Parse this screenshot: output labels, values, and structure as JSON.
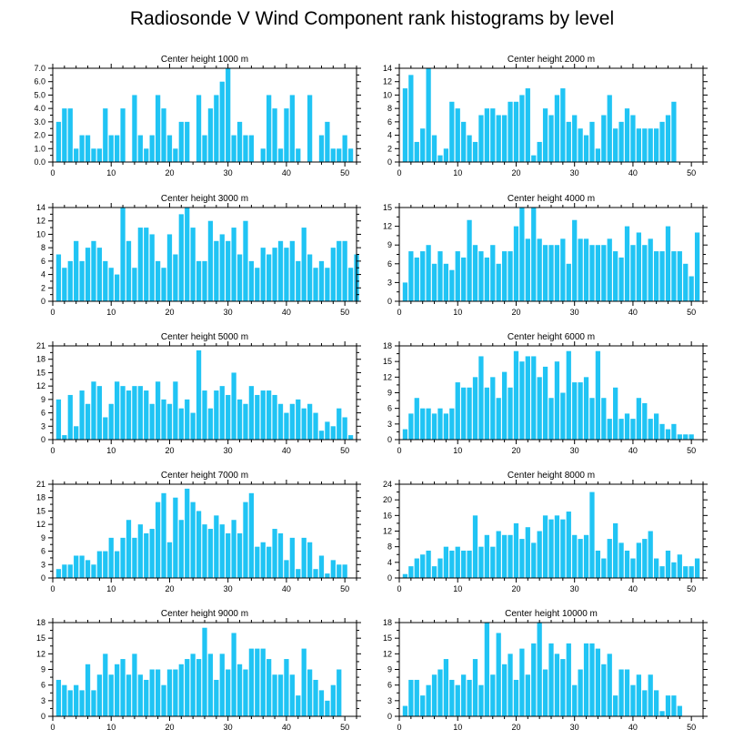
{
  "title": "Radiosonde V Wind Component rank histograms by level",
  "colors": {
    "bar": "#20c4f4",
    "axis": "#000000",
    "background": "#ffffff"
  },
  "chart_data": [
    {
      "type": "bar",
      "title": "Center height 1000 m",
      "xlim": [
        0,
        52
      ],
      "ylim": [
        0,
        7
      ],
      "yticks": [
        0,
        1,
        2,
        3,
        4,
        5,
        6,
        7
      ],
      "ytick_labels": [
        "0.0",
        "1.0",
        "2.0",
        "3.0",
        "4.0",
        "5.0",
        "6.0",
        "7.0"
      ],
      "xticks": [
        0,
        10,
        20,
        30,
        40,
        50
      ],
      "xtick_labels": [
        "0",
        "10",
        "20",
        "30",
        "40",
        "50"
      ],
      "values": [
        3,
        4,
        4,
        1,
        2,
        2,
        1,
        1,
        4,
        2,
        2,
        4,
        0,
        5,
        2,
        1,
        2,
        5,
        4,
        2,
        1,
        3,
        3,
        0,
        5,
        2,
        4,
        5,
        6,
        7,
        2,
        3,
        2,
        2,
        0,
        1,
        5,
        4,
        1,
        4,
        5,
        1,
        0,
        5,
        0,
        2,
        3,
        1,
        1,
        2,
        1
      ]
    },
    {
      "type": "bar",
      "title": "Center height 2000 m",
      "xlim": [
        0,
        52
      ],
      "ylim": [
        0,
        14
      ],
      "yticks": [
        0,
        2,
        4,
        6,
        8,
        10,
        12,
        14
      ],
      "ytick_labels": [
        "0",
        "2",
        "4",
        "6",
        "8",
        "10",
        "12",
        "14"
      ],
      "xticks": [
        0,
        10,
        20,
        30,
        40,
        50
      ],
      "xtick_labels": [
        "0",
        "10",
        "20",
        "30",
        "40",
        "50"
      ],
      "values": [
        11,
        13,
        3,
        5,
        14,
        4,
        1,
        2,
        9,
        8,
        6,
        4,
        3,
        7,
        8,
        8,
        7,
        7,
        9,
        9,
        10,
        11,
        1,
        3,
        8,
        7,
        10,
        11,
        6,
        7,
        5,
        4,
        6,
        2,
        7,
        10,
        5,
        6,
        8,
        7,
        5,
        5,
        5,
        5,
        6,
        7,
        9
      ]
    },
    {
      "type": "bar",
      "title": "Center height 3000 m",
      "xlim": [
        0,
        52
      ],
      "ylim": [
        0,
        14
      ],
      "yticks": [
        0,
        2,
        4,
        6,
        8,
        10,
        12,
        14
      ],
      "ytick_labels": [
        "0",
        "2",
        "4",
        "6",
        "8",
        "10",
        "12",
        "14"
      ],
      "xticks": [
        0,
        10,
        20,
        30,
        40,
        50
      ],
      "xtick_labels": [
        "0",
        "10",
        "20",
        "30",
        "40",
        "50"
      ],
      "values": [
        7,
        5,
        6,
        9,
        6,
        8,
        9,
        8,
        6,
        5,
        4,
        14,
        9,
        5,
        11,
        11,
        10,
        6,
        5,
        10,
        7,
        13,
        14,
        11,
        6,
        6,
        12,
        9,
        10,
        9,
        11,
        7,
        12,
        6,
        5,
        8,
        7,
        8,
        9,
        8,
        9,
        6,
        11,
        7,
        5,
        6,
        5,
        8,
        9,
        9,
        5,
        7
      ]
    },
    {
      "type": "bar",
      "title": "Center height 4000 m",
      "xlim": [
        0,
        52
      ],
      "ylim": [
        0,
        15
      ],
      "yticks": [
        0,
        3,
        6,
        9,
        12,
        15
      ],
      "ytick_labels": [
        "0",
        "3",
        "6",
        "9",
        "12",
        "15"
      ],
      "xticks": [
        0,
        10,
        20,
        30,
        40,
        50
      ],
      "xtick_labels": [
        "0",
        "10",
        "20",
        "30",
        "40",
        "50"
      ],
      "values": [
        3,
        8,
        7,
        8,
        9,
        6,
        8,
        6,
        5,
        8,
        7,
        13,
        9,
        8,
        7,
        9,
        6,
        8,
        8,
        12,
        15,
        10,
        15,
        10,
        9,
        9,
        9,
        10,
        6,
        13,
        10,
        10,
        9,
        9,
        9,
        10,
        8,
        7,
        12,
        9,
        11,
        9,
        10,
        8,
        8,
        12,
        8,
        8,
        6,
        4,
        11
      ]
    },
    {
      "type": "bar",
      "title": "Center height 5000 m",
      "xlim": [
        0,
        52
      ],
      "ylim": [
        0,
        21
      ],
      "yticks": [
        0,
        3,
        6,
        9,
        12,
        15,
        18,
        21
      ],
      "ytick_labels": [
        "0",
        "3",
        "6",
        "9",
        "12",
        "15",
        "18",
        "21"
      ],
      "xticks": [
        0,
        10,
        20,
        30,
        40,
        50
      ],
      "xtick_labels": [
        "0",
        "10",
        "20",
        "30",
        "40",
        "50"
      ],
      "values": [
        9,
        1,
        10,
        3,
        11,
        8,
        13,
        12,
        5,
        8,
        13,
        12,
        11,
        12,
        12,
        11,
        8,
        13,
        9,
        8,
        13,
        7,
        9,
        6,
        20,
        11,
        7,
        11,
        12,
        10,
        15,
        9,
        8,
        12,
        10,
        11,
        11,
        10,
        8,
        6,
        8,
        9,
        7,
        8,
        6,
        2,
        4,
        3,
        7,
        5,
        1
      ]
    },
    {
      "type": "bar",
      "title": "Center height 6000 m",
      "xlim": [
        0,
        52
      ],
      "ylim": [
        0,
        18
      ],
      "yticks": [
        0,
        3,
        6,
        9,
        12,
        15,
        18
      ],
      "ytick_labels": [
        "0",
        "3",
        "6",
        "9",
        "12",
        "15",
        "18"
      ],
      "xticks": [
        0,
        10,
        20,
        30,
        40,
        50
      ],
      "xtick_labels": [
        "0",
        "10",
        "20",
        "30",
        "40",
        "50"
      ],
      "values": [
        2,
        5,
        8,
        6,
        6,
        5,
        6,
        5,
        6,
        11,
        10,
        10,
        12,
        16,
        10,
        12,
        8,
        13,
        10,
        17,
        15,
        16,
        16,
        12,
        14,
        8,
        15,
        9,
        17,
        11,
        11,
        12,
        8,
        17,
        8,
        4,
        10,
        4,
        5,
        4,
        8,
        7,
        4,
        5,
        3,
        2,
        3,
        1,
        1,
        1
      ]
    },
    {
      "type": "bar",
      "title": "Center height 7000 m",
      "xlim": [
        0,
        52
      ],
      "ylim": [
        0,
        21
      ],
      "yticks": [
        0,
        3,
        6,
        9,
        12,
        15,
        18,
        21
      ],
      "ytick_labels": [
        "0",
        "3",
        "6",
        "9",
        "12",
        "15",
        "18",
        "21"
      ],
      "xticks": [
        0,
        10,
        20,
        30,
        40,
        50
      ],
      "xtick_labels": [
        "0",
        "10",
        "20",
        "30",
        "40",
        "50"
      ],
      "values": [
        2,
        3,
        3,
        5,
        5,
        4,
        3,
        6,
        6,
        9,
        6,
        9,
        13,
        9,
        12,
        10,
        11,
        17,
        19,
        8,
        18,
        13,
        20,
        17,
        15,
        12,
        11,
        14,
        12,
        10,
        13,
        10,
        17,
        19,
        7,
        8,
        7,
        11,
        10,
        4,
        9,
        2,
        9,
        8,
        2,
        5,
        1,
        4,
        3,
        3
      ]
    },
    {
      "type": "bar",
      "title": "Center height 8000 m",
      "xlim": [
        0,
        52
      ],
      "ylim": [
        0,
        24
      ],
      "yticks": [
        0,
        4,
        8,
        12,
        16,
        20,
        24
      ],
      "ytick_labels": [
        "0",
        "4",
        "8",
        "12",
        "16",
        "20",
        "24"
      ],
      "xticks": [
        0,
        10,
        20,
        30,
        40,
        50
      ],
      "xtick_labels": [
        "0",
        "10",
        "20",
        "30",
        "40",
        "50"
      ],
      "values": [
        1,
        3,
        5,
        6,
        7,
        3,
        5,
        8,
        7,
        8,
        7,
        7,
        16,
        8,
        11,
        8,
        12,
        11,
        11,
        14,
        10,
        13,
        9,
        12,
        16,
        15,
        16,
        15,
        17,
        11,
        10,
        11,
        22,
        7,
        5,
        10,
        14,
        9,
        7,
        5,
        9,
        10,
        12,
        5,
        3,
        7,
        4,
        6,
        3,
        3,
        5
      ]
    },
    {
      "type": "bar",
      "title": "Center height 9000 m",
      "xlim": [
        0,
        52
      ],
      "ylim": [
        0,
        18
      ],
      "yticks": [
        0,
        3,
        6,
        9,
        12,
        15,
        18
      ],
      "ytick_labels": [
        "0",
        "3",
        "6",
        "9",
        "12",
        "15",
        "18"
      ],
      "xticks": [
        0,
        10,
        20,
        30,
        40,
        50
      ],
      "xtick_labels": [
        "0",
        "10",
        "20",
        "30",
        "40",
        "50"
      ],
      "values": [
        7,
        6,
        5,
        6,
        5,
        10,
        5,
        8,
        12,
        8,
        10,
        11,
        8,
        12,
        8,
        7,
        9,
        9,
        6,
        9,
        9,
        10,
        11,
        12,
        11,
        17,
        12,
        7,
        12,
        9,
        16,
        10,
        9,
        13,
        13,
        13,
        11,
        8,
        8,
        11,
        8,
        4,
        13,
        9,
        7,
        5,
        3,
        6,
        9
      ]
    },
    {
      "type": "bar",
      "title": "Center height 10000 m",
      "xlim": [
        0,
        52
      ],
      "ylim": [
        0,
        18
      ],
      "yticks": [
        0,
        3,
        6,
        9,
        12,
        15,
        18
      ],
      "ytick_labels": [
        "0",
        "3",
        "6",
        "9",
        "12",
        "15",
        "18"
      ],
      "xticks": [
        0,
        10,
        20,
        30,
        40,
        50
      ],
      "xtick_labels": [
        "0",
        "10",
        "20",
        "30",
        "40",
        "50"
      ],
      "values": [
        2,
        7,
        7,
        4,
        6,
        8,
        9,
        11,
        7,
        6,
        8,
        7,
        11,
        6,
        18,
        8,
        16,
        10,
        12,
        7,
        13,
        8,
        14,
        18,
        9,
        14,
        12,
        11,
        14,
        6,
        9,
        14,
        14,
        13,
        10,
        12,
        4,
        9,
        9,
        6,
        8,
        5,
        8,
        5,
        1,
        4,
        4,
        2
      ]
    }
  ]
}
